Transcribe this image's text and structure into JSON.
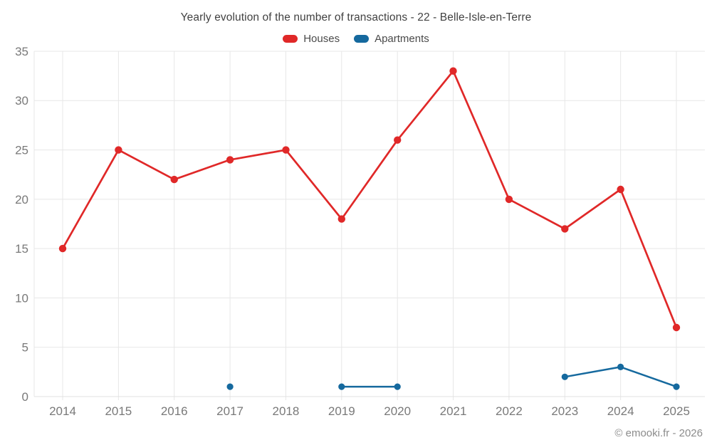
{
  "chart": {
    "title": "Yearly evolution of the number of transactions - 22 - Belle-Isle-en-Terre",
    "caption": "© emooki.fr - 2026"
  },
  "chart_data": {
    "type": "line",
    "title": "Yearly evolution of the number of transactions - 22 - Belle-Isle-en-Terre",
    "categories": [
      "2014",
      "2015",
      "2016",
      "2017",
      "2018",
      "2019",
      "2020",
      "2021",
      "2022",
      "2023",
      "2024",
      "2025"
    ],
    "series": [
      {
        "name": "Houses",
        "color": "#e02828",
        "values": [
          15,
          25,
          22,
          24,
          25,
          18,
          26,
          33,
          20,
          17,
          21,
          7
        ]
      },
      {
        "name": "Apartments",
        "color": "#15699e",
        "values": [
          null,
          null,
          null,
          1,
          null,
          1,
          1,
          null,
          null,
          2,
          3,
          1
        ]
      }
    ],
    "xlabel": "",
    "ylabel": "",
    "ylim": [
      0,
      35
    ],
    "y_ticks": [
      0,
      5,
      10,
      15,
      20,
      25,
      30,
      35
    ],
    "grid": true,
    "legend_position": "top",
    "grid_color": "#e7e7e7",
    "axis_line_color": "#e0e0e0"
  }
}
